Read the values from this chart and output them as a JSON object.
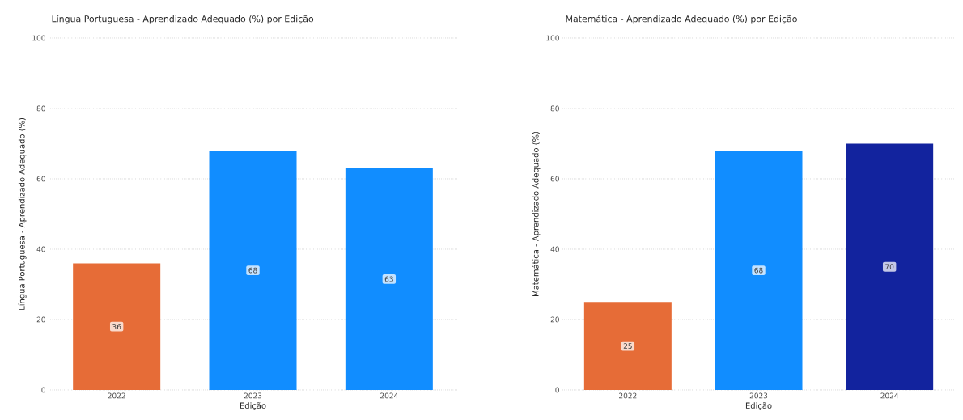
{
  "chart_data": [
    {
      "type": "bar",
      "title": "Língua Portuguesa - Aprendizado Adequado (%) por Edição",
      "xlabel": "Edição",
      "ylabel": "Língua Portuguesa - Aprendizado Adequado (%)",
      "categories": [
        "2022",
        "2023",
        "2024"
      ],
      "values": [
        36,
        68,
        63
      ],
      "colors": [
        "#e66c37",
        "#118dff",
        "#118dff"
      ],
      "ylim": [
        0,
        100
      ],
      "yticks": [
        0,
        20,
        40,
        60,
        80,
        100
      ],
      "grid": "y",
      "data_labels": true
    },
    {
      "type": "bar",
      "title": "Matemática - Aprendizado Adequado (%) por Edição",
      "xlabel": "Edição",
      "ylabel": "Matemática - Aprendizado Adequado (%)",
      "categories": [
        "2022",
        "2023",
        "2024"
      ],
      "values": [
        25,
        68,
        70
      ],
      "colors": [
        "#e66c37",
        "#118dff",
        "#12239e"
      ],
      "ylim": [
        0,
        100
      ],
      "yticks": [
        0,
        20,
        40,
        60,
        80,
        100
      ],
      "grid": "y",
      "data_labels": true
    }
  ]
}
